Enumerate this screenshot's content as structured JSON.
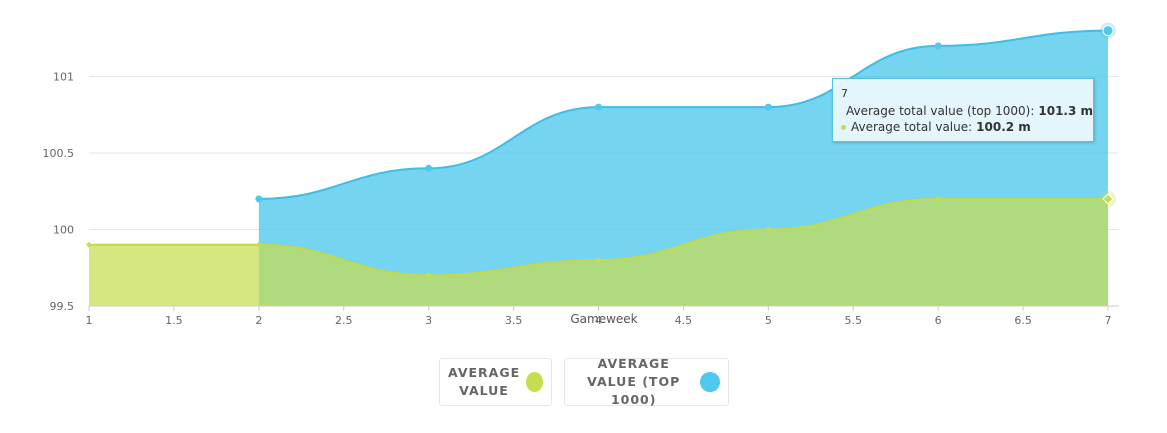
{
  "chart_data": {
    "type": "area",
    "x": [
      1,
      2,
      3,
      4,
      5,
      6,
      7
    ],
    "xlabel": "Gameweek",
    "xlim": [
      1,
      7
    ],
    "x_ticks": [
      1,
      1.5,
      2,
      2.5,
      3,
      3.5,
      4,
      4.5,
      5,
      5.5,
      6,
      6.5,
      7
    ],
    "x_tick_labels": [
      "1",
      "1.5",
      "2",
      "2.5",
      "3",
      "3.5",
      "4",
      "4.5",
      "5",
      "5.5",
      "6",
      "6.5",
      "7"
    ],
    "ylim": [
      99.5,
      101.5
    ],
    "y_ticks": [
      99.5,
      100,
      100.5,
      101
    ],
    "y_tick_labels": [
      "99.5",
      "100",
      "100.5",
      "101"
    ],
    "grid": true,
    "legend_placement": "bottom-center",
    "series": [
      {
        "name": "Average total value",
        "legend_label": "Average value",
        "color": "#c6dd50",
        "x": [
          1,
          2,
          3,
          4,
          5,
          6,
          7
        ],
        "values": [
          99.9,
          99.9,
          99.7,
          99.8,
          100.0,
          100.2,
          100.2
        ]
      },
      {
        "name": "Average total value (top 1000)",
        "legend_label": "Average value (top 1000)",
        "color": "#4ec8ec",
        "x": [
          2,
          3,
          4,
          5,
          6,
          7
        ],
        "values": [
          100.2,
          100.4,
          100.8,
          100.8,
          101.2,
          101.3
        ]
      }
    ],
    "tooltip": {
      "header": "7",
      "rows": [
        {
          "label": "Average total value (top 1000):",
          "value": "101.3 m",
          "color": "#4ec8ec"
        },
        {
          "label": "Average total value:",
          "value": "100.2 m",
          "color": "#c6dd50"
        }
      ]
    }
  }
}
